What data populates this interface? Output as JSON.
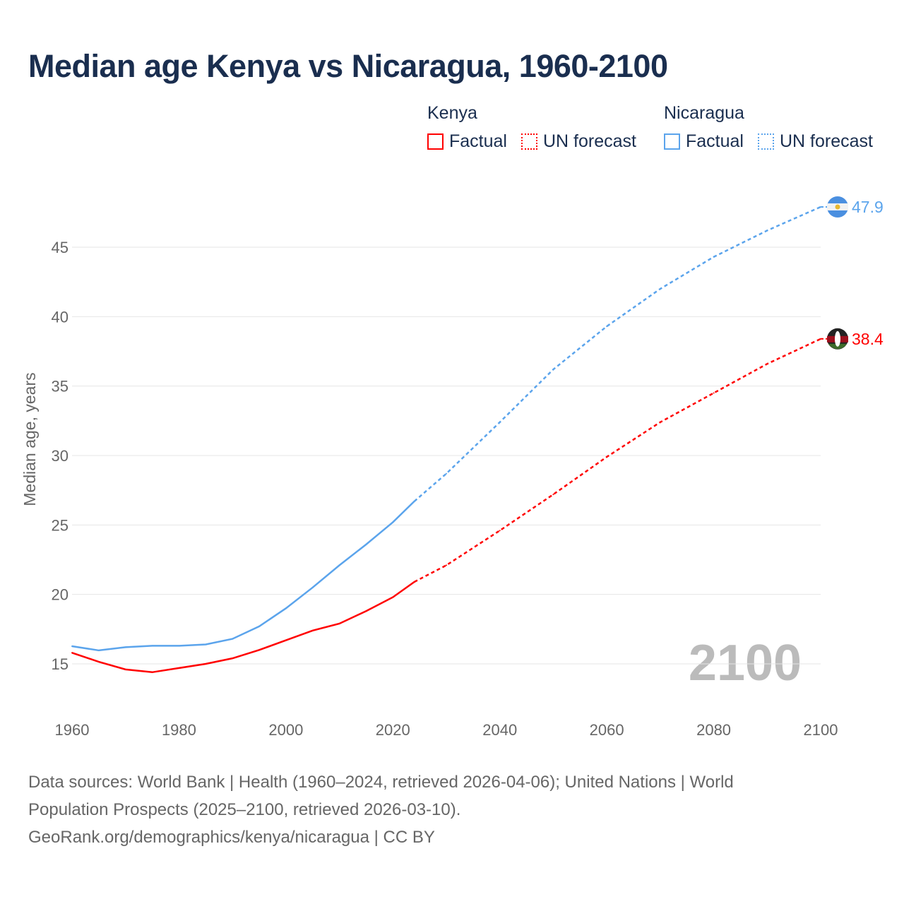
{
  "title": "Median age Kenya vs Nicaragua, 1960-2100",
  "legend": {
    "kenya": "Kenya",
    "nicaragua": "Nicaragua",
    "factual": "Factual",
    "forecast": "UN forecast"
  },
  "year_watermark": "2100",
  "source_line1": "Data sources: World Bank | Health (1960–2024, retrieved 2026-04-06); United Nations | World",
  "source_line2": "Population Prospects (2025–2100, retrieved 2026-03-10).",
  "source_line3": "GeoRank.org/demographics/kenya/nicaragua | CC BY",
  "colors": {
    "kenya": "#ff0000",
    "nicaragua": "#5ba4ec"
  },
  "chart_data": {
    "type": "line",
    "title": "Median age Kenya vs Nicaragua, 1960-2100",
    "xlabel": "",
    "ylabel": "Median age, years",
    "xlim": [
      1960,
      2100
    ],
    "ylim": [
      12,
      49
    ],
    "xticks": [
      1960,
      1980,
      2000,
      2020,
      2040,
      2060,
      2080,
      2100
    ],
    "yticks": [
      15,
      20,
      25,
      30,
      35,
      40,
      45
    ],
    "grid": true,
    "forecast_start": 2024,
    "x": [
      1960,
      1965,
      1970,
      1975,
      1980,
      1985,
      1990,
      1995,
      2000,
      2005,
      2010,
      2015,
      2020,
      2024,
      2030,
      2040,
      2050,
      2060,
      2070,
      2080,
      2090,
      2100
    ],
    "series": [
      {
        "name": "Kenya",
        "end_label": "38.4",
        "values": [
          15.8,
          15.15,
          14.6,
          14.4,
          14.7,
          15.0,
          15.4,
          16.0,
          16.7,
          17.4,
          17.9,
          18.8,
          19.8,
          20.9,
          22.1,
          24.6,
          27.2,
          29.9,
          32.4,
          34.5,
          36.6,
          38.4
        ]
      },
      {
        "name": "Nicaragua",
        "end_label": "47.9",
        "values": [
          16.27,
          15.97,
          16.2,
          16.3,
          16.3,
          16.4,
          16.8,
          17.7,
          19.0,
          20.5,
          22.1,
          23.6,
          25.2,
          26.7,
          28.7,
          32.4,
          36.2,
          39.3,
          42.0,
          44.3,
          46.2,
          47.9
        ]
      }
    ]
  }
}
